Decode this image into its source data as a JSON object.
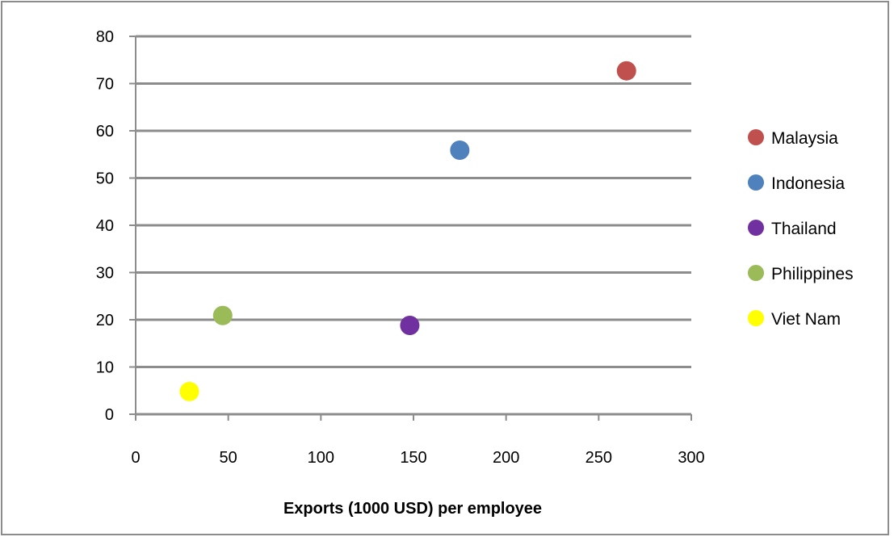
{
  "chart_data": {
    "type": "scatter",
    "title": "",
    "xlabel": "Exports (1000 USD) per employee",
    "ylabel": "",
    "xlim": [
      0,
      300
    ],
    "ylim": [
      0,
      80
    ],
    "x_ticks": [
      0,
      50,
      100,
      150,
      200,
      250,
      300
    ],
    "y_ticks": [
      0,
      10,
      20,
      30,
      40,
      50,
      60,
      70,
      80
    ],
    "grid": "horizontal",
    "legend_position": "right",
    "series": [
      {
        "name": "Malaysia",
        "color": "#c0504d",
        "points": [
          {
            "x": 265,
            "y": 72.7
          }
        ]
      },
      {
        "name": "Indonesia",
        "color": "#4f81bd",
        "points": [
          {
            "x": 175,
            "y": 55.9
          }
        ]
      },
      {
        "name": "Thailand",
        "color": "#7030a0",
        "points": [
          {
            "x": 148,
            "y": 18.8
          }
        ]
      },
      {
        "name": "Philippines",
        "color": "#9bbb59",
        "points": [
          {
            "x": 47,
            "y": 20.9
          }
        ]
      },
      {
        "name": "Viet Nam",
        "color": "#ffff00",
        "points": [
          {
            "x": 29,
            "y": 4.8
          }
        ]
      }
    ]
  }
}
